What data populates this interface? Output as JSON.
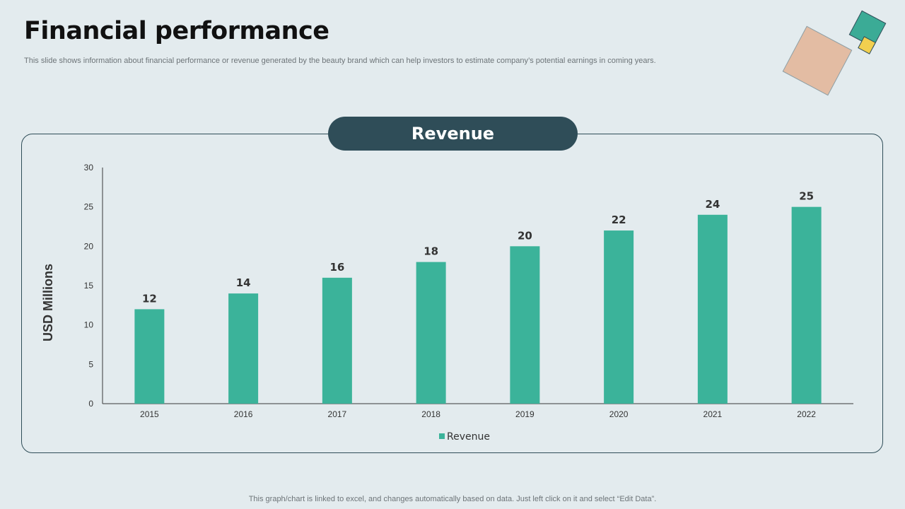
{
  "slide": {
    "title": "Financial performance",
    "subtitle": "This slide shows information about financial performance or revenue generated by the beauty brand which can help investors to estimate company’s potential earnings in coming years.",
    "chart_heading": "Revenue",
    "footer": "This graph/chart is linked to excel,  and changes automatically based on data. Just left click on it and select “Edit Data”."
  },
  "colors": {
    "background": "#e3ebee",
    "bar": "#3bb39a",
    "heading_pill": "#2f4d58",
    "deco_peach": "#e3bca3",
    "deco_teal": "#3bab96",
    "deco_yellow": "#f2cf4f"
  },
  "chart_data": {
    "type": "bar",
    "categories": [
      "2015",
      "2016",
      "2017",
      "2018",
      "2019",
      "2020",
      "2021",
      "2022"
    ],
    "series": [
      {
        "name": "Revenue",
        "values": [
          12,
          14,
          16,
          18,
          20,
          22,
          24,
          25
        ]
      }
    ],
    "ylabel": "USD Millions",
    "xlabel": "",
    "ylim": [
      0,
      30
    ],
    "yticks": [
      0,
      5,
      10,
      15,
      20,
      25,
      30
    ],
    "data_labels": true,
    "grid": false,
    "legend": "bottom-center"
  }
}
